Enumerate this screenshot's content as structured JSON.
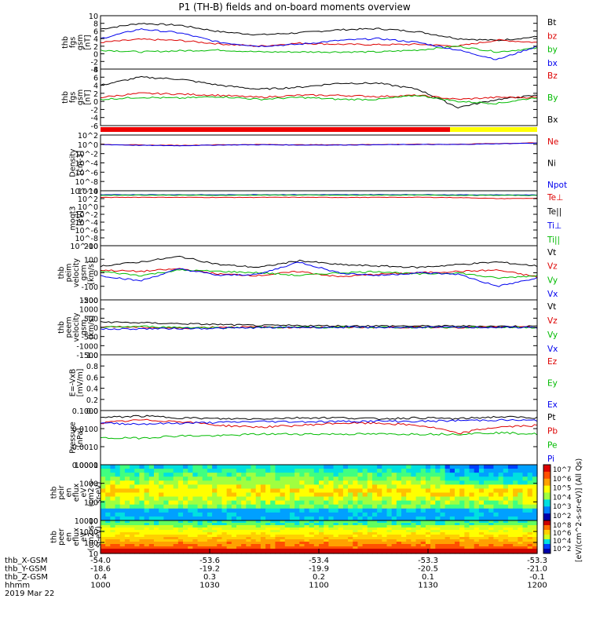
{
  "title": "P1 (TH-B) fields and on-board moments overview",
  "colorbar_label": "[eV/(cm^2-s-sr-eV)]  (All Qs)",
  "colorbar_ticks": [
    "10^7",
    "10^6",
    "10^5",
    "10^4",
    "10^3",
    "10^2"
  ],
  "colorbar_ticks2": [
    "10^8",
    "10^6",
    "10^4",
    "10^2"
  ],
  "panels": [
    {
      "id": "fgs",
      "ylabel": [
        "thb",
        "fgs",
        "gsm",
        "[nT]"
      ],
      "ticks": [
        "10",
        "8",
        "6",
        "4",
        "2",
        "0",
        "-2",
        "-4"
      ],
      "legend": [
        {
          "t": "Bt",
          "c": "#000000"
        },
        {
          "t": "bz",
          "c": "#dd0000"
        },
        {
          "t": "by",
          "c": "#00bb00"
        },
        {
          "t": "bx",
          "c": "#0000ee"
        }
      ]
    },
    {
      "id": "fgs-dsl",
      "ylabel": [
        "thb",
        "fgs",
        "gsm",
        "[nT]"
      ],
      "ticks": [
        "8",
        "6",
        "4",
        "2",
        "0",
        "-2",
        "-4",
        "-6"
      ],
      "legend": [
        {
          "t": "Bz",
          "c": "#dd0000"
        },
        {
          "t": "By",
          "c": "#00bb00"
        },
        {
          "t": "Bx",
          "c": "#000000"
        }
      ]
    },
    {
      "id": "density",
      "ylabel": [
        "Density",
        "[cm-3]"
      ],
      "ticks": [
        "10^2",
        "10^0",
        "10^-2",
        "10^-4",
        "10^-6",
        "10^-8",
        "10^-10"
      ],
      "legend": [
        {
          "t": "Ne",
          "c": "#dd0000"
        },
        {
          "t": "Ni",
          "c": "#000000"
        },
        {
          "t": "Npot",
          "c": "#0000ee"
        }
      ]
    },
    {
      "id": "temp",
      "ylabel": [
        "moqt3",
        "[eV]"
      ],
      "ticks": [
        "10^4",
        "10^2",
        "10^0",
        "10^-2",
        "10^-4",
        "10^-6",
        "10^-8",
        "10^-10"
      ],
      "legend": [
        {
          "t": "Te⊥",
          "c": "#dd0000"
        },
        {
          "t": "Te||",
          "c": "#000000"
        },
        {
          "t": "Ti⊥",
          "c": "#0000ee"
        },
        {
          "t": "Ti||",
          "c": "#00bb00"
        }
      ]
    },
    {
      "id": "peim-vel",
      "ylabel": [
        "thb",
        "peim",
        "velocity",
        "gsm",
        "[km/s]"
      ],
      "ticks": [
        "200",
        "100",
        "0",
        "-100",
        "-200"
      ],
      "legend": [
        {
          "t": "Vt",
          "c": "#000000"
        },
        {
          "t": "Vz",
          "c": "#dd0000"
        },
        {
          "t": "Vy",
          "c": "#00bb00"
        },
        {
          "t": "Vx",
          "c": "#0000ee"
        }
      ]
    },
    {
      "id": "peem-vel",
      "ylabel": [
        "thb",
        "peem",
        "velocity",
        "gsm",
        "[km/s]"
      ],
      "ticks": [
        "1500",
        "1000",
        "500",
        "0",
        "-500",
        "-1000",
        "-1500"
      ],
      "legend": [
        {
          "t": "Vt",
          "c": "#000000"
        },
        {
          "t": "Vz",
          "c": "#dd0000"
        },
        {
          "t": "Vy",
          "c": "#00bb00"
        },
        {
          "t": "Vx",
          "c": "#0000ee"
        }
      ]
    },
    {
      "id": "efield",
      "ylabel": [
        "E=-VxB",
        "[mV/m]"
      ],
      "ticks": [
        "1.0",
        "0.8",
        "0.6",
        "0.4",
        "0.2",
        "0.0"
      ],
      "legend": [
        {
          "t": "Ez",
          "c": "#dd0000"
        },
        {
          "t": "Ey",
          "c": "#00bb00"
        },
        {
          "t": "Ex",
          "c": "#0000ee"
        }
      ]
    },
    {
      "id": "pressure",
      "ylabel": [
        "Pressure",
        "[nPa]"
      ],
      "ticks": [
        "0.1000",
        "0.0100",
        "0.0010",
        "0.0001"
      ],
      "legend": [
        {
          "t": "Pt",
          "c": "#000000"
        },
        {
          "t": "Pb",
          "c": "#dd0000"
        },
        {
          "t": "Pe",
          "c": "#00bb00"
        },
        {
          "t": "Pi",
          "c": "#0000ee"
        }
      ]
    },
    {
      "id": "peir-spec",
      "ylabel": [
        "thb",
        "peir",
        "en",
        "eflux",
        "eV",
        "(cm2-s-",
        "sr-eV)"
      ],
      "ticks": [
        "10000",
        "1000",
        "100",
        "10"
      ],
      "legend": []
    },
    {
      "id": "peer-spec",
      "ylabel": [
        "thb",
        "peer",
        "en",
        "eflux",
        "eV",
        "(cm2-s-",
        "sr-eV)"
      ],
      "ticks": [
        "10000",
        "1000",
        "100",
        "10"
      ],
      "legend": []
    }
  ],
  "xaxis": {
    "rows": [
      {
        "label": "thb_X-GSM",
        "values": [
          "-54.0",
          "-53.6",
          "-53.4",
          "-53.3",
          "-53.3"
        ]
      },
      {
        "label": "thb_Y-GSM",
        "values": [
          "-18.6",
          "-19.2",
          "-19.9",
          "-20.5",
          "-21.0"
        ]
      },
      {
        "label": "thb_Z-GSM",
        "values": [
          "0.4",
          "0.3",
          "0.2",
          "0.1",
          "-0.1"
        ]
      },
      {
        "label": "hhmm",
        "values": [
          "1000",
          "1030",
          "1100",
          "1130",
          "1200"
        ]
      }
    ],
    "date": "2019 Mar 22"
  },
  "chart_data": {
    "type": "line",
    "title": "P1 (TH-B) fields and on-board moments overview",
    "x_time_hhmm": [
      "1000",
      "1030",
      "1100",
      "1130",
      "1200"
    ],
    "panels": [
      {
        "name": "fgs gsm",
        "ylim": [
          -4,
          10
        ],
        "series": [
          {
            "name": "Bt",
            "color": "#000000",
            "values": [
              6.5,
              8.0,
              7.5,
              5.8,
              5.0,
              5.5,
              6.3,
              6.6,
              5.8,
              4.0,
              3.5,
              4.5
            ]
          },
          {
            "name": "bz",
            "color": "#dd0000",
            "values": [
              3.0,
              3.8,
              3.5,
              2.6,
              2.0,
              2.8,
              2.5,
              2.4,
              2.5,
              2.0,
              3.6,
              3.0
            ]
          },
          {
            "name": "by",
            "color": "#00bb00",
            "values": [
              1.0,
              0.5,
              0.8,
              1.0,
              0.5,
              0.5,
              0.5,
              0.5,
              1.0,
              2.0,
              0.5,
              1.5
            ]
          },
          {
            "name": "bx",
            "color": "#0000ee",
            "values": [
              4.0,
              6.5,
              5.5,
              3.0,
              2.0,
              2.5,
              3.5,
              4.0,
              3.0,
              1.0,
              -1.5,
              2.0
            ]
          }
        ]
      },
      {
        "name": "fgs dsl",
        "ylim": [
          -6,
          8
        ],
        "series": [
          {
            "name": "Bx",
            "color": "#000000",
            "values": [
              4.0,
              6.0,
              5.5,
              4.0,
              3.0,
              3.5,
              4.5,
              4.5,
              3.0,
              -1.5,
              0.5,
              1.5
            ]
          },
          {
            "name": "Bz",
            "color": "#dd0000",
            "values": [
              1.0,
              2.0,
              1.8,
              1.5,
              1.0,
              1.5,
              1.5,
              1.2,
              1.5,
              0.5,
              1.0,
              1.0
            ]
          },
          {
            "name": "By",
            "color": "#00bb00",
            "values": [
              0.5,
              1.0,
              0.8,
              1.2,
              0.5,
              1.0,
              0.5,
              0.5,
              1.5,
              0.0,
              -0.5,
              1.0
            ]
          }
        ]
      },
      {
        "name": "Density",
        "ylim": [
          1e-10,
          100
        ],
        "log": true,
        "series": [
          {
            "name": "Ne",
            "color": "#dd0000",
            "values": [
              1.0,
              0.7,
              0.6,
              0.8,
              0.9,
              0.8,
              0.8,
              0.9,
              1.0,
              1.0,
              1.5,
              2.0
            ]
          },
          {
            "name": "Npot",
            "color": "#0000ee",
            "values": [
              0.9,
              0.6,
              0.5,
              0.7,
              0.8,
              0.7,
              0.7,
              0.8,
              0.9,
              0.9,
              1.3,
              1.8
            ]
          }
        ]
      },
      {
        "name": "moqt3",
        "ylim": [
          1e-10,
          10000
        ],
        "log": true,
        "series": [
          {
            "name": "Te⊥",
            "color": "#dd0000",
            "values": [
              200,
              220,
              210,
              200,
              210,
              220,
              200,
              210,
              220,
              180,
              100,
              120
            ]
          },
          {
            "name": "Ti⊥",
            "color": "#0000ee",
            "values": [
              900,
              1000,
              950,
              900,
              1000,
              1000,
              950,
              1000,
              1000,
              900,
              900,
              850
            ]
          },
          {
            "name": "Ti||",
            "color": "#00bb00",
            "values": [
              700,
              800,
              750,
              700,
              800,
              800,
              750,
              800,
              800,
              700,
              700,
              650
            ]
          }
        ]
      },
      {
        "name": "peim velocity gsm",
        "ylim": [
          -200,
          200
        ],
        "series": [
          {
            "name": "Vt",
            "color": "#000000",
            "values": [
              50,
              80,
              120,
              60,
              40,
              90,
              60,
              50,
              40,
              60,
              80,
              50
            ]
          },
          {
            "name": "Vz",
            "color": "#dd0000",
            "values": [
              20,
              10,
              30,
              -10,
              -20,
              10,
              -30,
              -10,
              0,
              10,
              20,
              -30
            ]
          },
          {
            "name": "Vy",
            "color": "#00bb00",
            "values": [
              10,
              -20,
              20,
              10,
              0,
              -20,
              0,
              10,
              -10,
              0,
              -40,
              -20
            ]
          },
          {
            "name": "Vx",
            "color": "#0000ee",
            "values": [
              -20,
              -60,
              30,
              -20,
              -10,
              80,
              0,
              -20,
              0,
              -10,
              -100,
              -40
            ]
          }
        ]
      },
      {
        "name": "peem velocity gsm",
        "ylim": [
          -1500,
          1500
        ],
        "series": [
          {
            "name": "Vt",
            "color": "#000000",
            "values": [
              300,
              250,
              200,
              150,
              100,
              100,
              80,
              80,
              70,
              70,
              60,
              60
            ]
          },
          {
            "name": "Vz",
            "color": "#dd0000",
            "values": [
              50,
              0,
              -50,
              20,
              10,
              0,
              0,
              0,
              0,
              0,
              0,
              0
            ]
          },
          {
            "name": "Vy",
            "color": "#00bb00",
            "values": [
              0,
              50,
              0,
              -20,
              0,
              0,
              0,
              0,
              0,
              0,
              0,
              0
            ]
          },
          {
            "name": "Vx",
            "color": "#0000ee",
            "values": [
              -100,
              -80,
              -60,
              -50,
              -20,
              0,
              0,
              0,
              0,
              0,
              0,
              0
            ]
          }
        ]
      },
      {
        "name": "E=-VxB",
        "ylim": [
          0.0,
          1.0
        ],
        "series": []
      },
      {
        "name": "Pressure",
        "ylim": [
          0.0001,
          0.1
        ],
        "log": true,
        "series": [
          {
            "name": "Pt",
            "color": "#000000",
            "values": [
              0.04,
              0.05,
              0.04,
              0.035,
              0.035,
              0.04,
              0.04,
              0.035,
              0.04,
              0.035,
              0.045,
              0.04
            ]
          },
          {
            "name": "Pb",
            "color": "#dd0000",
            "values": [
              0.02,
              0.03,
              0.025,
              0.015,
              0.012,
              0.015,
              0.02,
              0.02,
              0.015,
              0.005,
              0.012,
              0.015
            ]
          },
          {
            "name": "Pe",
            "color": "#00bb00",
            "values": [
              0.003,
              0.003,
              0.004,
              0.004,
              0.005,
              0.005,
              0.005,
              0.005,
              0.005,
              0.005,
              0.006,
              0.005
            ]
          },
          {
            "name": "Pi",
            "color": "#0000ee",
            "values": [
              0.02,
              0.018,
              0.02,
              0.022,
              0.025,
              0.024,
              0.025,
              0.026,
              0.025,
              0.028,
              0.03,
              0.028
            ]
          }
        ]
      },
      {
        "name": "peir en eflux",
        "type": "heatmap",
        "ylim": [
          5,
          20000
        ],
        "log": true
      },
      {
        "name": "peer en eflux",
        "type": "heatmap",
        "ylim": [
          5,
          20000
        ],
        "log": true
      }
    ]
  }
}
